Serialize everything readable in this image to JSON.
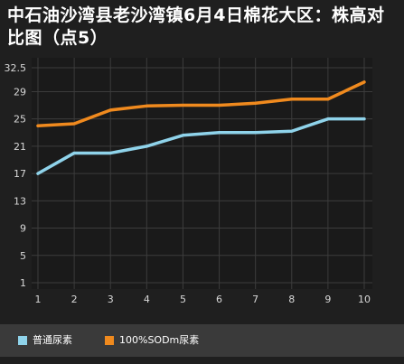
{
  "title": "中石油沙湾县老沙湾镇6月4日棉花大区：株高对比图（点5）",
  "chart_data": {
    "type": "line",
    "title": "中石油沙湾县老沙湾镇6月4日棉花大区：株高对比图（点5）",
    "x": [
      1,
      2,
      3,
      4,
      5,
      6,
      7,
      8,
      9,
      10
    ],
    "x_tick_labels": [
      "1",
      "2",
      "3",
      "4",
      "5",
      "6",
      "7",
      "8",
      "9",
      "10"
    ],
    "y_ticks": [
      1,
      5,
      9,
      13,
      17,
      21,
      25,
      29,
      32.5
    ],
    "y_tick_labels": [
      "1",
      "5",
      "9",
      "13",
      "17",
      "21",
      "25",
      "29",
      "32.5"
    ],
    "ylim": [
      1,
      32.5
    ],
    "xlabel": "",
    "ylabel": "",
    "grid": true,
    "legend_position": "bottom",
    "series": [
      {
        "name": "普通尿素",
        "color": "#8fd3ea",
        "values": [
          17,
          20,
          20,
          21,
          22.6,
          23,
          23,
          23.2,
          25,
          25
        ]
      },
      {
        "name": "100%SODm尿素",
        "color": "#f08a1e",
        "values": [
          24,
          24.3,
          26.3,
          26.9,
          27,
          27,
          27.3,
          27.9,
          27.9,
          30.4
        ]
      }
    ]
  },
  "legend": {
    "items": [
      {
        "label": "普通尿素",
        "color": "#8fd3ea"
      },
      {
        "label": "100%SODm尿素",
        "color": "#f08a1e"
      }
    ]
  },
  "colors": {
    "background": "#1f1f1f",
    "plot_background": "#1a1a1a",
    "grid": "#3c3c3c",
    "axis_text": "#d8d8d8",
    "legend_background": "#3a3a3a"
  }
}
